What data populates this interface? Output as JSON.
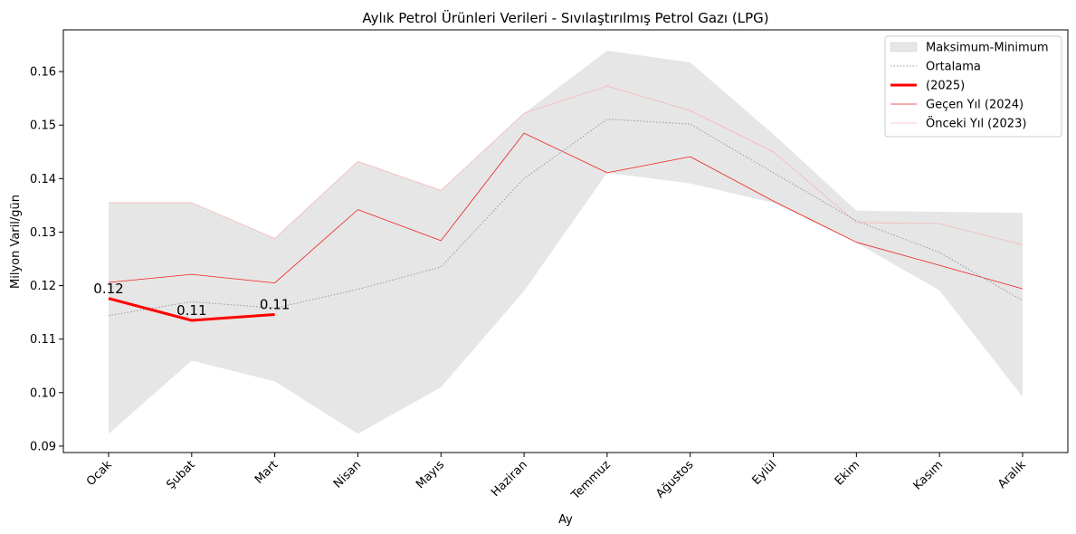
{
  "chart_data": {
    "type": "line",
    "title": "Aylık Petrol Ürünleri Verileri - Sıvılaştırılmış Petrol Gazı (LPG)",
    "xlabel": "Ay",
    "ylabel": "Milyon Varil/gün",
    "categories": [
      "Ocak",
      "Şubat",
      "Mart",
      "Nisan",
      "Mayıs",
      "Haziran",
      "Temmuz",
      "Ağustos",
      "Eylül",
      "Ekim",
      "Kasım",
      "Aralık"
    ],
    "ylim": [
      0.0888,
      0.1678
    ],
    "yticks": [
      0.09,
      0.1,
      0.11,
      0.12,
      0.13,
      0.14,
      0.15,
      0.16
    ],
    "ytick_labels": [
      "0.09",
      "0.10",
      "0.11",
      "0.12",
      "0.13",
      "0.14",
      "0.15",
      "0.16"
    ],
    "band": {
      "name": "Maksimum-Minimum",
      "color": "#e6e6e6",
      "max": [
        0.1355,
        0.1355,
        0.1288,
        0.1432,
        0.1378,
        0.1522,
        0.1639,
        0.1617,
        0.1483,
        0.134,
        0.1338,
        0.1336
      ],
      "min": [
        0.0923,
        0.106,
        0.1021,
        0.0923,
        0.101,
        0.119,
        0.1411,
        0.1391,
        0.1355,
        0.128,
        0.1191,
        0.0992
      ]
    },
    "series": [
      {
        "name": "Ortalama",
        "color": "#999999",
        "style": "dotted",
        "width": 1,
        "values": [
          0.1144,
          0.117,
          0.1158,
          0.1193,
          0.1235,
          0.14,
          0.1511,
          0.1502,
          0.1411,
          0.1321,
          0.1262,
          0.1172
        ]
      },
      {
        "name": " (2025)",
        "color": "#ff0000",
        "style": "solid",
        "width": 3,
        "values": [
          0.1176,
          0.1135,
          0.1146,
          null,
          null,
          null,
          null,
          null,
          null,
          null,
          null,
          null
        ],
        "labels": [
          "0.12",
          "0.11",
          "0.11"
        ]
      },
      {
        "name": "Geçen Yıl (2024)",
        "color": "#ee2222",
        "style": "solid",
        "width": 0.8,
        "values": [
          0.1206,
          0.1221,
          0.1205,
          0.1342,
          0.1284,
          0.1485,
          0.1411,
          0.1441,
          0.1358,
          0.1281,
          0.1238,
          0.1194
        ]
      },
      {
        "name": "Önceki Yıl (2023)",
        "color": "#f4b8b8",
        "style": "solid",
        "width": 0.8,
        "values": [
          0.1355,
          0.1355,
          0.1288,
          0.1432,
          0.1378,
          0.1522,
          0.1573,
          0.1527,
          0.145,
          0.1318,
          0.1316,
          0.1276
        ]
      }
    ],
    "legend": {
      "placement": "top-right",
      "entries": [
        "Maksimum-Minimum",
        "Ortalama",
        " (2025)",
        "Geçen Yıl (2024)",
        "Önceki Yıl (2023)"
      ]
    },
    "grid": false
  }
}
